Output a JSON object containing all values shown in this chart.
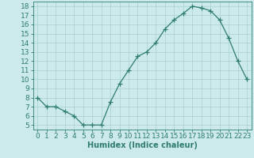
{
  "x": [
    0,
    1,
    2,
    3,
    4,
    5,
    6,
    7,
    8,
    9,
    10,
    11,
    12,
    13,
    14,
    15,
    16,
    17,
    18,
    19,
    20,
    21,
    22,
    23
  ],
  "y": [
    8,
    7,
    7,
    6.5,
    6,
    5,
    5,
    5,
    7.5,
    9.5,
    11,
    12.5,
    13,
    14,
    15.5,
    16.5,
    17.2,
    18,
    17.8,
    17.5,
    16.5,
    14.5,
    12,
    10
  ],
  "line_color": "#2e7d6e",
  "marker": "+",
  "background_color": "#cdeaea",
  "grid_color": "#a8d0d0",
  "xlabel": "Humidex (Indice chaleur)",
  "xlabel_fontsize": 7,
  "tick_fontsize": 6.5,
  "xlim": [
    -0.5,
    23.5
  ],
  "ylim": [
    4.5,
    18.5
  ],
  "yticks": [
    5,
    6,
    7,
    8,
    9,
    10,
    11,
    12,
    13,
    14,
    15,
    16,
    17,
    18
  ],
  "xticks": [
    0,
    1,
    2,
    3,
    4,
    5,
    6,
    7,
    8,
    9,
    10,
    11,
    12,
    13,
    14,
    15,
    16,
    17,
    18,
    19,
    20,
    21,
    22,
    23
  ]
}
